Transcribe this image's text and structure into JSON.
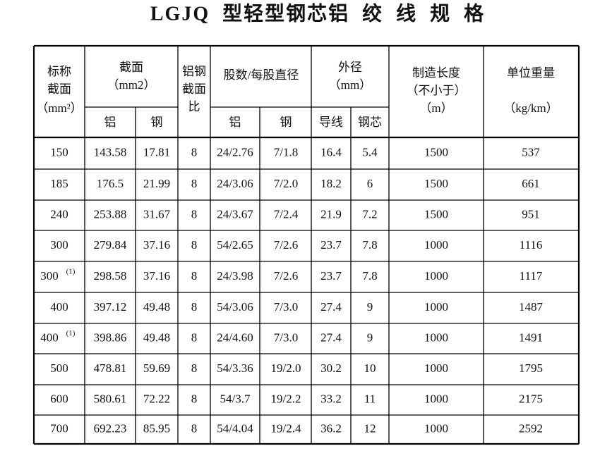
{
  "header": {
    "title": "LGJQ  型轻型钢芯铝  绞  线  规  格"
  },
  "table": {
    "columns": [
      {
        "lines": [
          "标称",
          "截面",
          "（mm²）"
        ]
      },
      {
        "lines": [
          "截面",
          "（mm2）"
        ],
        "sub": [
          "铝",
          "钢"
        ]
      },
      {
        "lines": [
          "铝钢",
          "截面",
          "比"
        ]
      },
      {
        "lines": [
          "股数/每股直径"
        ],
        "sub": [
          "铝",
          "钢"
        ]
      },
      {
        "lines": [
          "外径",
          "（mm）"
        ],
        "sub": [
          "导线",
          "钢芯"
        ]
      },
      {
        "lines": [
          "制造长度",
          "（不小于）",
          "（m）"
        ]
      },
      {
        "lines": [
          "单位重量",
          "（kg/km）"
        ]
      }
    ],
    "rows": [
      {
        "cells": [
          "150",
          "143.58",
          "17.81",
          "8",
          "24/2.76",
          "7/1.8",
          "16.4",
          "5.4",
          "1500",
          "537"
        ]
      },
      {
        "cells": [
          "185",
          "176.5",
          "21.99",
          "8",
          "24/3.06",
          "7/2.0",
          "18.2",
          "6",
          "1500",
          "661"
        ]
      },
      {
        "cells": [
          "240",
          "253.88",
          "31.67",
          "8",
          "24/3.67",
          "7/2.4",
          "21.9",
          "7.2",
          "1500",
          "951"
        ]
      },
      {
        "cells": [
          "300",
          "279.84",
          "37.16",
          "8",
          "54/2.65",
          "7/2.6",
          "23.7",
          "7.8",
          "1000",
          "1116"
        ]
      },
      {
        "cells": [
          "300",
          "298.58",
          "37.16",
          "8",
          "24/3.98",
          "7/2.6",
          "23.7",
          "7.8",
          "1000",
          "1117"
        ],
        "note": "(1)"
      },
      {
        "cells": [
          "400",
          "397.12",
          "49.48",
          "8",
          "54/3.06",
          "7/3.0",
          "27.4",
          "9",
          "1000",
          "1487"
        ]
      },
      {
        "cells": [
          "400",
          "398.86",
          "49.48",
          "8",
          "24/4.60",
          "7/3.0",
          "27.4",
          "9",
          "1000",
          "1491"
        ],
        "note": "(1)"
      },
      {
        "cells": [
          "500",
          "478.81",
          "59.69",
          "8",
          "54/3.36",
          "19/2.0",
          "30.2",
          "10",
          "1000",
          "1795"
        ]
      },
      {
        "cells": [
          "600",
          "580.61",
          "72.22",
          "8",
          "54/3.7",
          "19/2.2",
          "33.2",
          "11",
          "1000",
          "2175"
        ]
      },
      {
        "cells": [
          "700",
          "692.23",
          "85.95",
          "8",
          "54/4.04",
          "19/2.4",
          "36.2",
          "12",
          "1000",
          "2592"
        ]
      }
    ]
  }
}
